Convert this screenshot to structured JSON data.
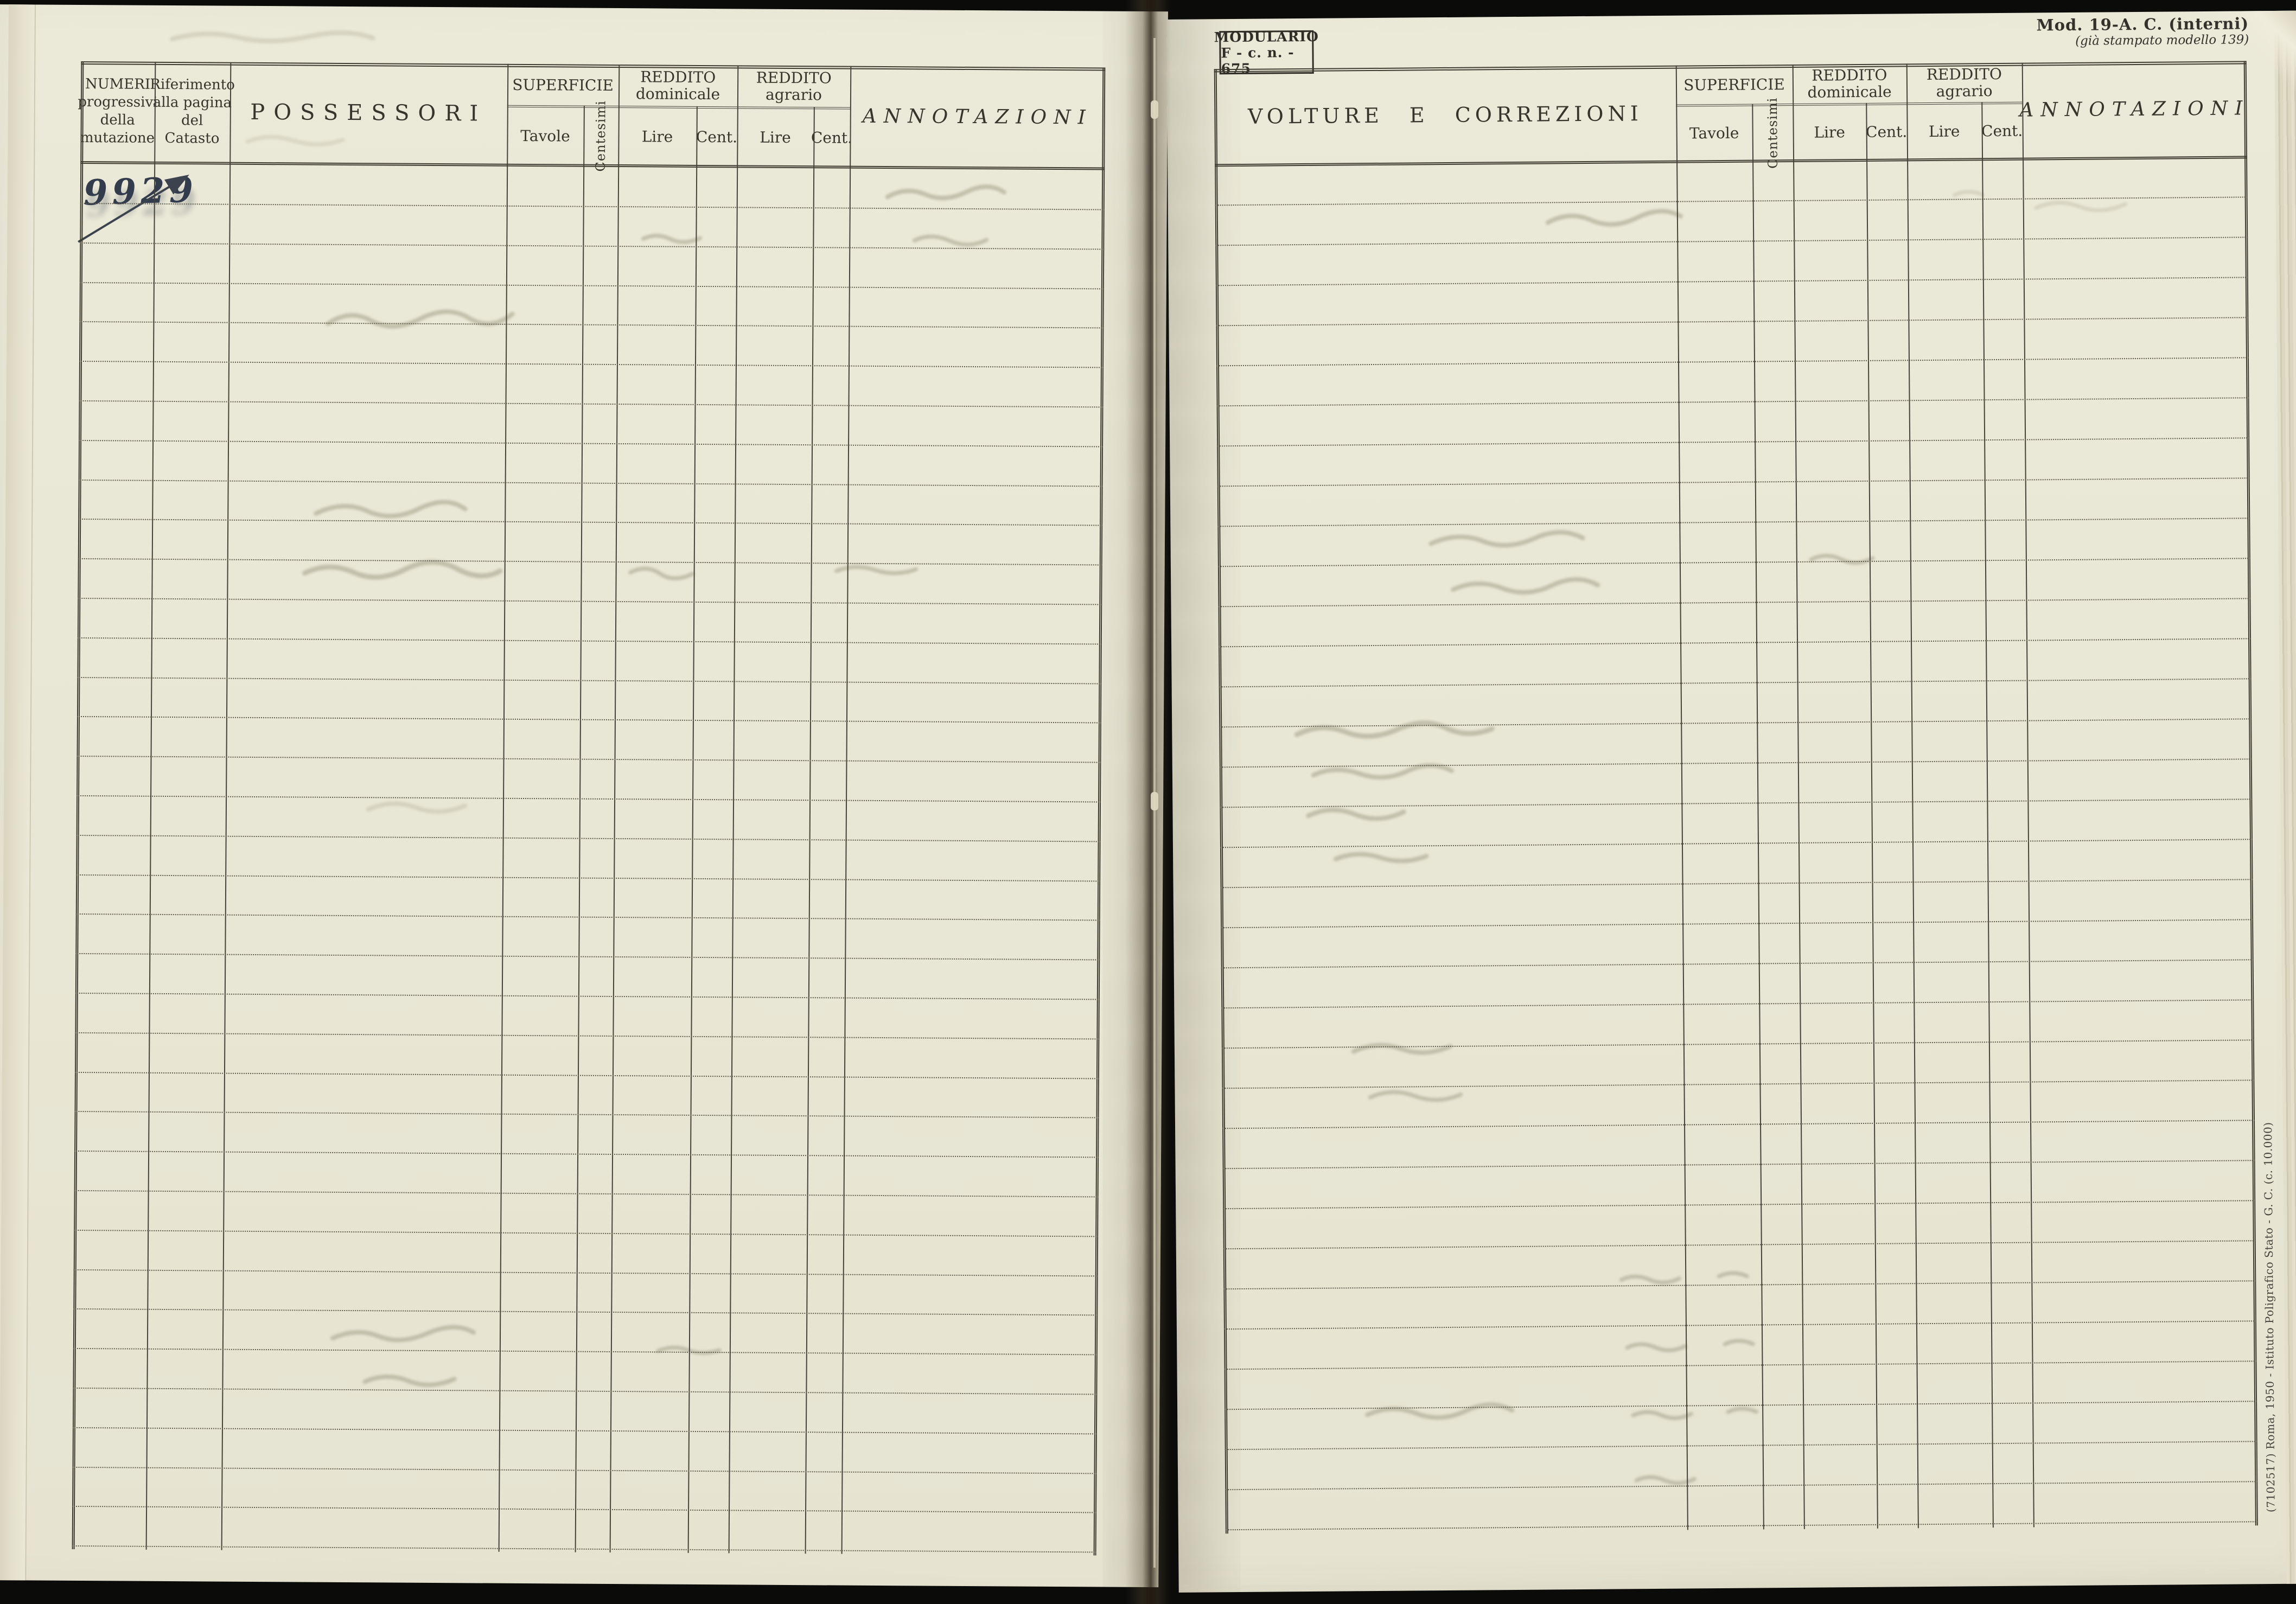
{
  "stamp": {
    "line1": "MODULARIO",
    "line2": "F - c. n. - 675"
  },
  "corner": {
    "line1": "Mod. 19-A. C. (interni)",
    "line2": "(già stampato modello 139)"
  },
  "left_table": {
    "col_numeri": "NUMERI\nprogressivi\ndella\nmutazione",
    "col_riferimento": "Riferimento\nalla pagina\ndel\nCatasto",
    "col_possessori": "POSSESSORI",
    "handwritten_number": "9929"
  },
  "right_table": {
    "col_volture": "VOLTURE E CORREZIONI"
  },
  "labels": {
    "superficie": "SUPERFICIE",
    "reddito_dominicale": "REDDITO\ndominicale",
    "reddito_agrario": "REDDITO\nagrario",
    "tavole": "Tavole",
    "centesimi": "Centesimi",
    "lire": "Lire",
    "cent": "Cent.",
    "annotazioni": "ANNOTAZIONI"
  },
  "edge_print": "(7102517) Roma, 1950 - Istituto Poligrafico Stato - G. C. (c. 10.000)"
}
